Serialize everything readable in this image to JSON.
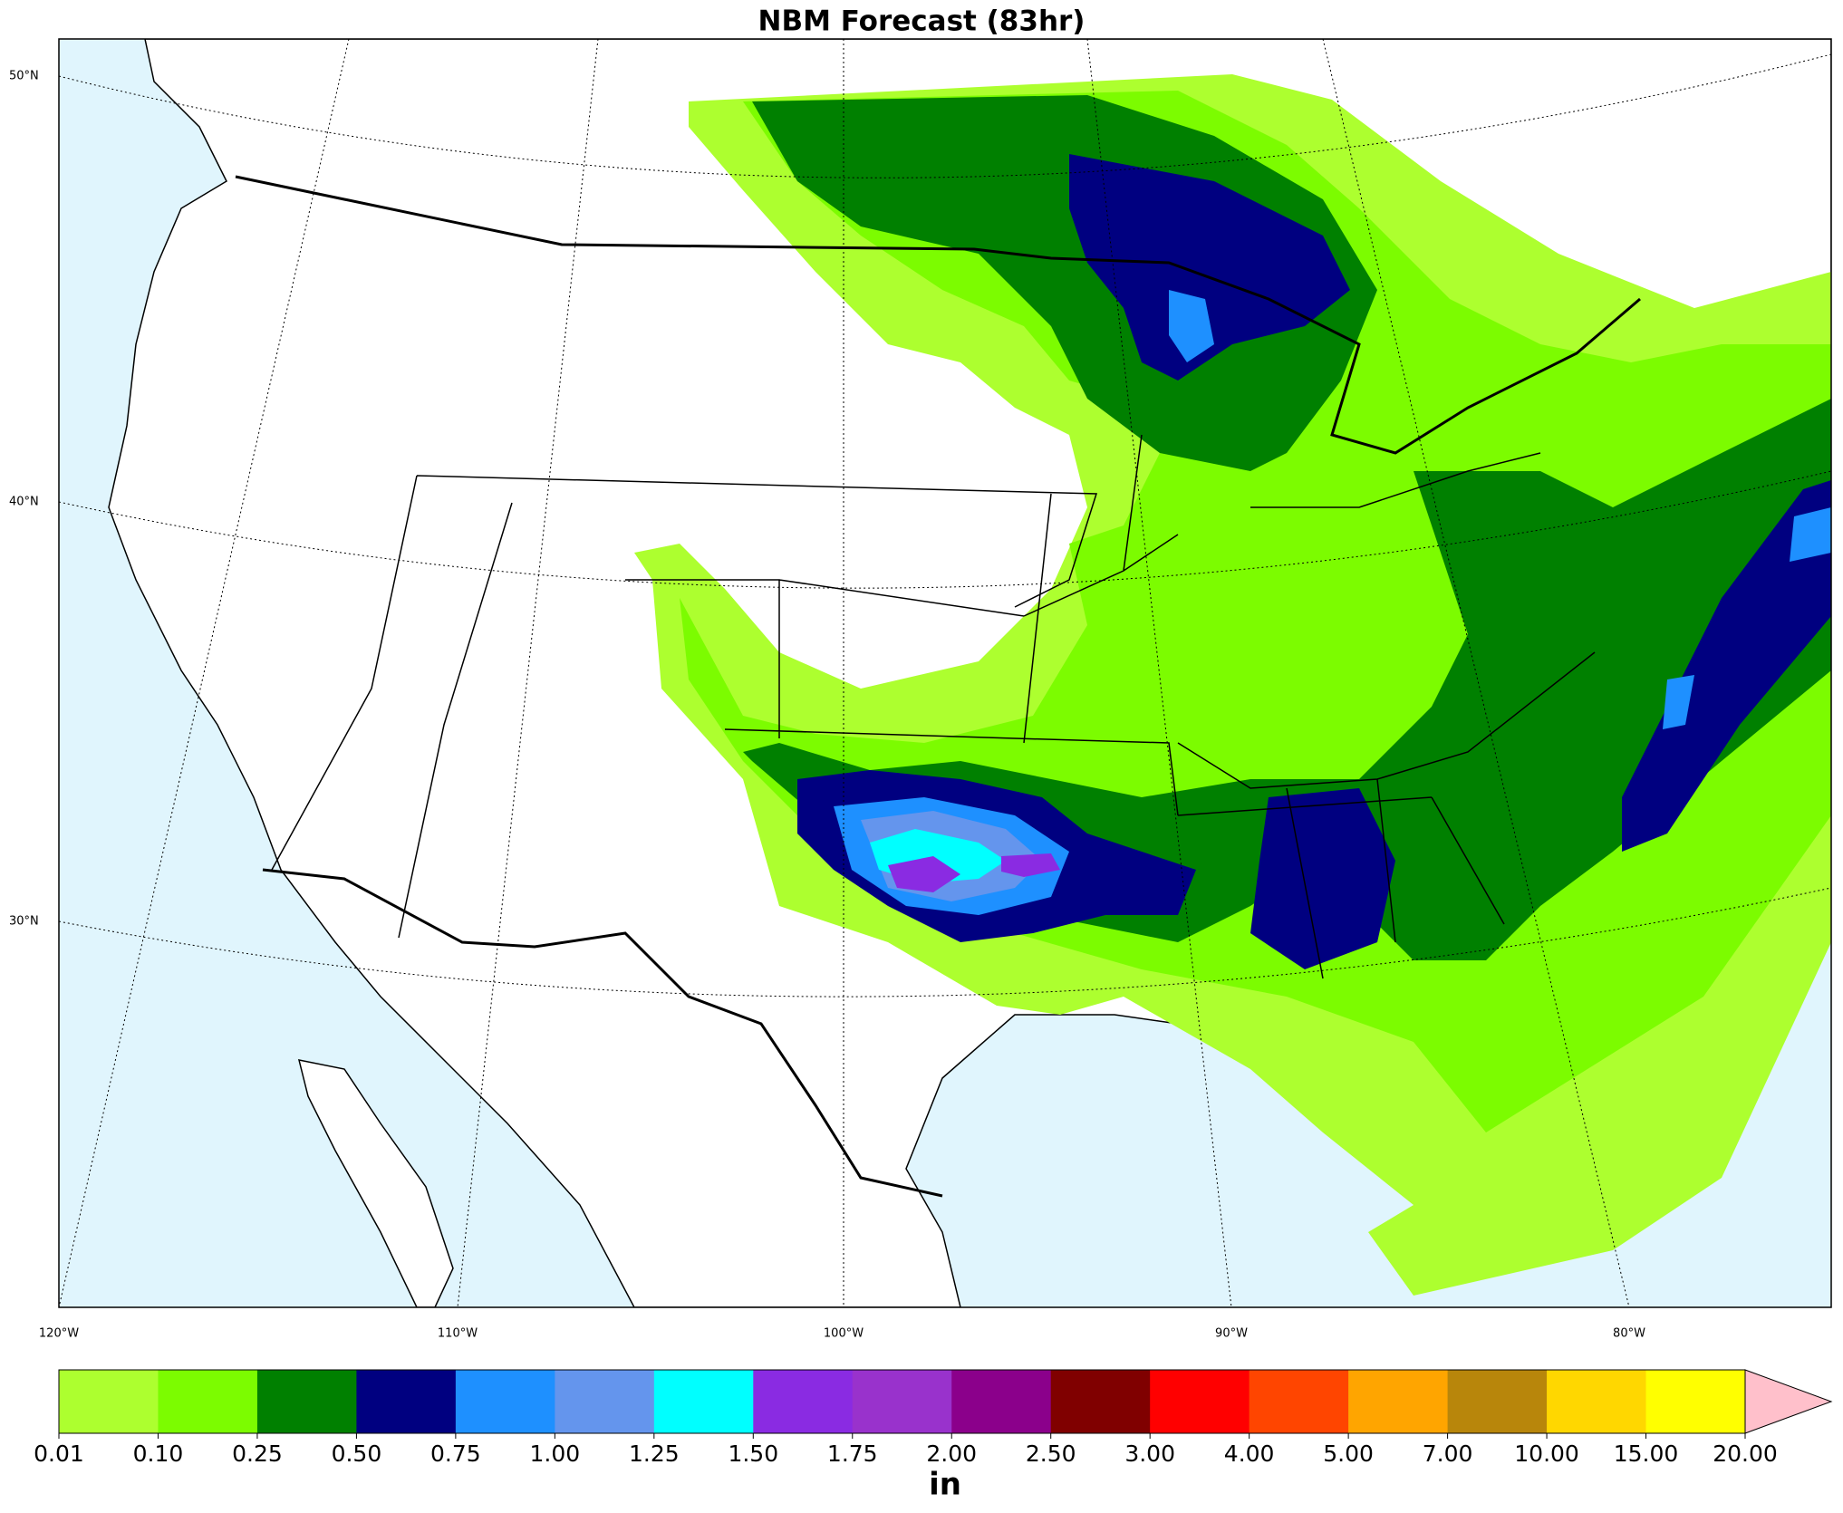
{
  "title": "NBM Forecast (83hr)",
  "map": {
    "lat_labels": [
      "50°N",
      "40°N",
      "30°N"
    ],
    "lon_labels": [
      "120°W",
      "110°W",
      "100°W",
      "90°W",
      "80°W"
    ]
  },
  "colorbar": {
    "labels": [
      "0.01",
      "0.10",
      "0.25",
      "0.50",
      "0.75",
      "1.00",
      "1.25",
      "1.50",
      "1.75",
      "2.00",
      "2.50",
      "3.00",
      "4.00",
      "5.00",
      "7.00",
      "10.00",
      "15.00",
      "20.00"
    ],
    "colors": [
      "#adff2f",
      "#7cfc00",
      "#008000",
      "#000080",
      "#1e90ff",
      "#6495ed",
      "#00ffff",
      "#8a2be2",
      "#9932cc",
      "#8b008b",
      "#800000",
      "#ff0000",
      "#ff4500",
      "#ffa500",
      "#b8860b",
      "#ffd700",
      "#ffff00"
    ],
    "extend_color": "#ffc0cb",
    "unit": "in"
  }
}
